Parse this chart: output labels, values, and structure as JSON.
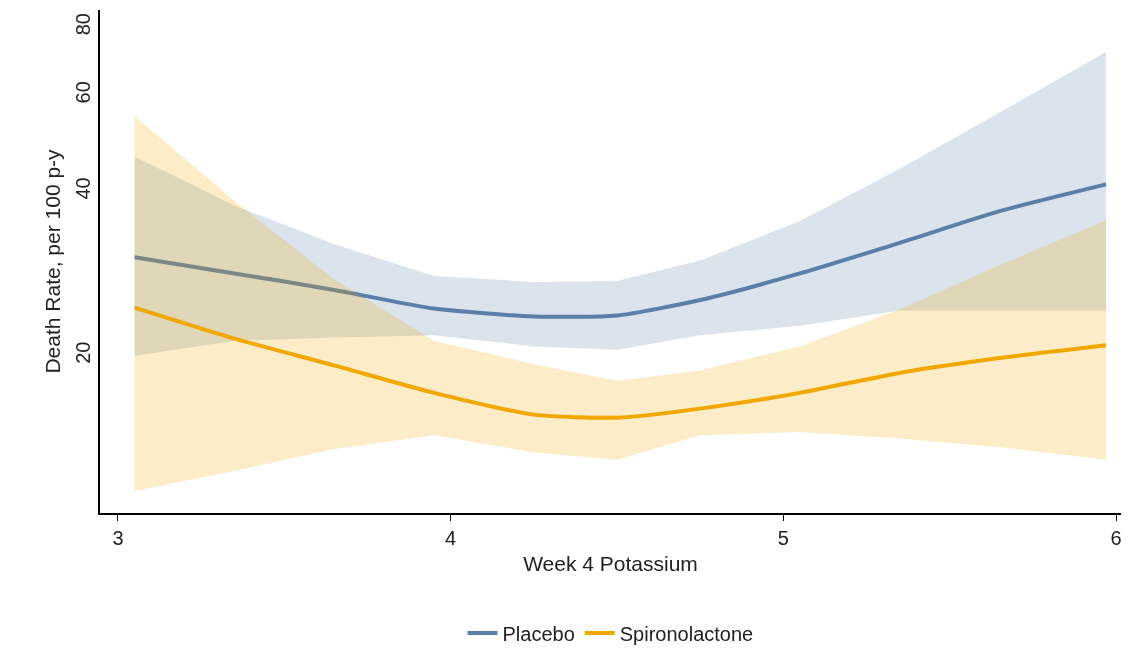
{
  "chart_data": {
    "type": "line",
    "xlabel": "Week 4 Potassium",
    "ylabel": "Death Rate, per 100 p-y",
    "x": [
      3.05,
      3.35,
      3.65,
      3.95,
      4.25,
      4.5,
      4.75,
      5.05,
      5.35,
      5.65,
      5.97
    ],
    "series": [
      {
        "name": "Placebo",
        "color": "#5a7fa8",
        "values": [
          30.3,
          28.3,
          26.4,
          24.4,
          23.6,
          23.7,
          25.3,
          28.3,
          32.2,
          36.8,
          41.2
        ],
        "lower": [
          20.0,
          21.3,
          21.6,
          21.8,
          20.8,
          20.5,
          21.8,
          22.7,
          24.2,
          24.2,
          24.2
        ],
        "upper": [
          46.3,
          37.7,
          32.0,
          28.0,
          27.3,
          27.4,
          29.9,
          35.3,
          44.0,
          55.8,
          72.0
        ]
      },
      {
        "name": "Spironolactone",
        "color": "#f0a800",
        "values": [
          24.5,
          21.5,
          19.2,
          17.1,
          15.6,
          15.4,
          16.0,
          17.1,
          18.6,
          19.8,
          20.9
        ],
        "lower": [
          11.3,
          12.3,
          13.5,
          14.3,
          13.3,
          12.9,
          14.3,
          14.5,
          14.1,
          13.6,
          12.9
        ],
        "upper": [
          55.0,
          38.4,
          27.6,
          21.3,
          19.3,
          18.0,
          18.8,
          20.8,
          24.3,
          29.3,
          35.4
        ]
      }
    ],
    "xlim": [
      2.946,
      6.015
    ],
    "xticks": [
      3,
      4,
      5,
      6
    ],
    "ylim": [
      10.3,
      86
    ],
    "yticks": [
      20,
      40,
      60,
      80
    ],
    "log": "y",
    "grid": false,
    "legend": "bottom",
    "marker": "none",
    "line_style": "solid"
  }
}
